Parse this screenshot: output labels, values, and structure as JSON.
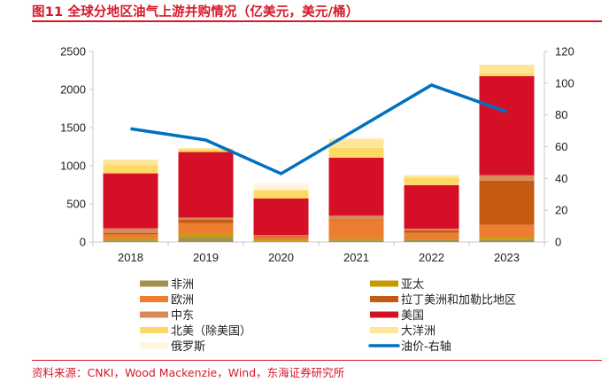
{
  "title": "图11  全球分地区油气上游并购情况（亿美元，美元/桶）",
  "source": "资料来源：CNKI，Wood Mackenzie，Wind，东海证券研究所",
  "chart_data": {
    "type": "bar",
    "stacked": true,
    "title": "全球分地区油气上游并购情况（亿美元，美元/桶）",
    "categories": [
      "2018",
      "2019",
      "2020",
      "2021",
      "2022",
      "2023"
    ],
    "left_axis": {
      "label": "亿美元",
      "ylim": [
        0,
        2500
      ],
      "ticks": [
        "0",
        "500",
        "1000",
        "1500",
        "2000",
        "2500"
      ]
    },
    "right_axis": {
      "label": "美元/桶",
      "ylim": [
        0,
        120
      ],
      "ticks": [
        "0",
        "20",
        "40",
        "60",
        "80",
        "100",
        "120"
      ]
    },
    "grid": false,
    "legend_position": "bottom",
    "series": [
      {
        "name": "非洲",
        "color": "#a3914f",
        "values": [
          20,
          60,
          10,
          20,
          30,
          25
        ]
      },
      {
        "name": "亚太",
        "color": "#c49a00",
        "values": [
          25,
          40,
          10,
          25,
          10,
          30
        ]
      },
      {
        "name": "欧洲",
        "color": "#ed7d31",
        "values": [
          55,
          150,
          40,
          240,
          80,
          170
        ]
      },
      {
        "name": "拉丁美洲和加勒比地区",
        "color": "#c55a11",
        "values": [
          20,
          45,
          15,
          10,
          35,
          580
        ]
      },
      {
        "name": "中东",
        "color": "#d9895a",
        "values": [
          60,
          25,
          15,
          50,
          20,
          70
        ]
      },
      {
        "name": "美国",
        "color": "#d50f25",
        "values": [
          720,
          860,
          480,
          760,
          570,
          1300
        ]
      },
      {
        "name": "北美（除美国）",
        "color": "#ffd966",
        "values": [
          110,
          40,
          110,
          130,
          100,
          40
        ]
      },
      {
        "name": "大洋洲",
        "color": "#ffe599",
        "values": [
          70,
          10,
          0,
          115,
          30,
          110
        ]
      },
      {
        "name": "俄罗斯",
        "color": "#fff4dc",
        "values": [
          0,
          0,
          90,
          20,
          0,
          0
        ]
      }
    ],
    "line_series": {
      "name": "油价-右轴",
      "color": "#0070c0",
      "axis": "right",
      "values": [
        71.3,
        64.2,
        43.0,
        70.9,
        98.8,
        82.0
      ]
    },
    "legend": [
      {
        "name": "非洲",
        "kind": "bar",
        "color": "#a3914f"
      },
      {
        "name": "亚太",
        "kind": "bar",
        "color": "#c49a00"
      },
      {
        "name": "欧洲",
        "kind": "bar",
        "color": "#ed7d31"
      },
      {
        "name": "拉丁美洲和加勒比地区",
        "kind": "bar",
        "color": "#c55a11"
      },
      {
        "name": "中东",
        "kind": "bar",
        "color": "#d9895a"
      },
      {
        "name": "美国",
        "kind": "bar",
        "color": "#d50f25"
      },
      {
        "name": "北美（除美国）",
        "kind": "bar",
        "color": "#ffd966"
      },
      {
        "name": "大洋洲",
        "kind": "bar",
        "color": "#ffe599"
      },
      {
        "name": "俄罗斯",
        "kind": "bar",
        "color": "#fff4dc"
      },
      {
        "name": "油价-右轴",
        "kind": "line",
        "color": "#0070c0"
      }
    ]
  }
}
